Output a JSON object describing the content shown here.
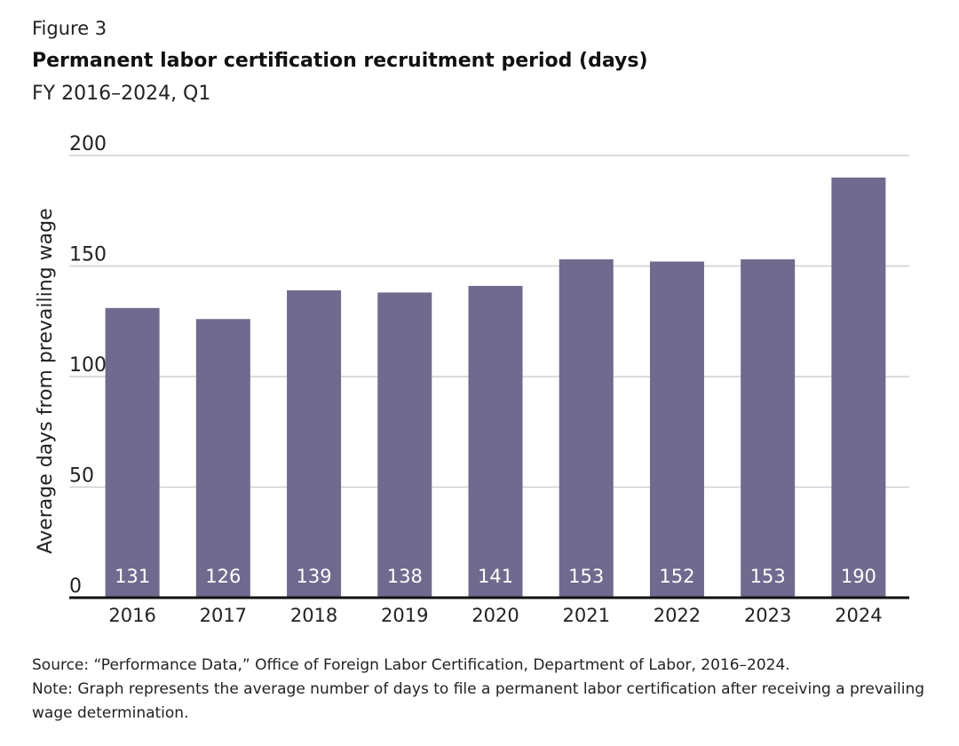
{
  "figure_label": "Figure 3",
  "title": "Permanent labor certification recruitment period (days)",
  "subtitle": "FY 2016–2024, Q1",
  "source": "Source: “Performance Data,” Office of Foreign Labor Certification, Department of Labor, 2016–2024.",
  "note": "Note: Graph represents the average number of days to file a permanent labor certification after receiving a prevailing wage determination.",
  "colors": {
    "bar": "#6f6a8e",
    "gridline": "#d0d0d0",
    "axis": "#111111",
    "bar_label": "#ffffff"
  },
  "chart_data": {
    "type": "bar",
    "categories": [
      "2016",
      "2017",
      "2018",
      "2019",
      "2020",
      "2021",
      "2022",
      "2023",
      "2024"
    ],
    "values": [
      131,
      126,
      139,
      138,
      141,
      153,
      152,
      153,
      190
    ],
    "data_labels": [
      "131",
      "126",
      "139",
      "138",
      "141",
      "153",
      "152",
      "153",
      "190"
    ],
    "ylabel": "Average days from prevailing wage",
    "xlabel": "",
    "ylim": [
      0,
      200
    ],
    "yticks": [
      0,
      50,
      100,
      150,
      200
    ],
    "grid": true,
    "legend": "none"
  }
}
